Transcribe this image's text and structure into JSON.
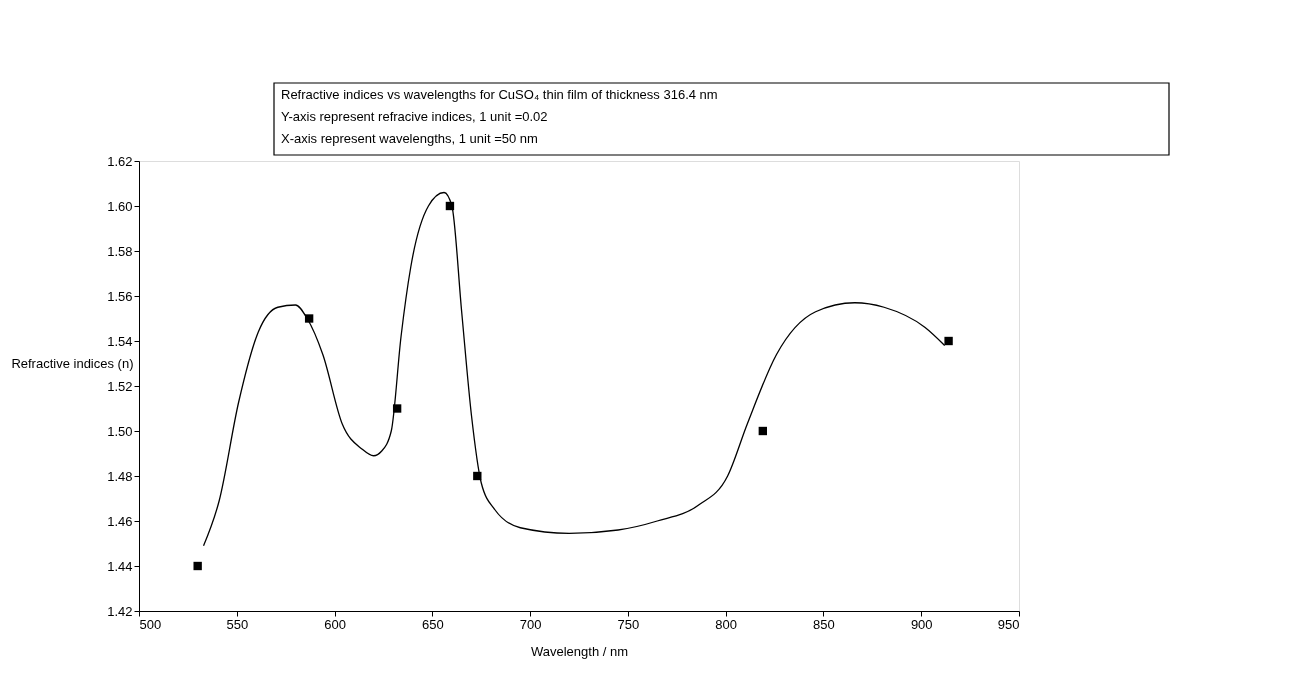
{
  "chart_data": {
    "type": "scatter",
    "xlabel": "Wavelength / nm",
    "ylabel": "Refractive indices (n)",
    "annotations": [
      "Refractive indices vs wavelengths for CuSO₄ thin film of thickness 316.4 nm",
      "Y-axis represent refracive indices, 1 unit =0.02",
      "X-axis represent wavelengths, 1 unit =50 nm"
    ],
    "xlim": [
      500,
      950
    ],
    "xticks": [
      500,
      550,
      600,
      650,
      700,
      750,
      800,
      850,
      900,
      950
    ],
    "ylim": [
      1.42,
      1.62
    ],
    "yticks": [
      {
        "value": 1.42,
        "label": "1.42"
      },
      {
        "value": 1.44,
        "label": "1.44"
      },
      {
        "value": 1.46,
        "label": "1.46"
      },
      {
        "value": 1.48,
        "label": "1.48"
      },
      {
        "value": 1.5,
        "label": "1.50"
      },
      {
        "value": 1.52,
        "label": "1.52"
      },
      {
        "value": 1.54,
        "label": "1.54"
      },
      {
        "value": 1.56,
        "label": "1.56"
      },
      {
        "value": 1.58,
        "label": "1.58"
      },
      {
        "value": 1.6,
        "label": "1.60"
      },
      {
        "value": 1.62,
        "label": "1.62"
      }
    ],
    "grid": false,
    "series": [
      {
        "marker": "square",
        "color": "#000000",
        "x": [
          530,
          587,
          632,
          659,
          673,
          819,
          914
        ],
        "values": [
          1.44,
          1.55,
          1.51,
          1.6,
          1.48,
          1.5,
          1.54
        ]
      },
      {
        "type": "line",
        "marker": "none",
        "line_style": "solid",
        "color": "#000000",
        "x": [
          533,
          541,
          551,
          561,
          571,
          580,
          586,
          594,
          604,
          614,
          620,
          624,
          629,
          634,
          639,
          648,
          656,
          660,
          665,
          670,
          675,
          682,
          695,
          720,
          745,
          765,
          786,
          801,
          811,
          826,
          846,
          866,
          881,
          902,
          912
        ],
        "values": [
          1.449,
          1.469,
          1.513,
          1.544,
          1.555,
          1.556,
          1.55,
          1.534,
          1.503,
          1.492,
          1.489,
          1.491,
          1.5,
          1.542,
          1.573,
          1.6,
          1.606,
          1.6,
          1.553,
          1.507,
          1.477,
          1.465,
          1.457,
          1.4545,
          1.456,
          1.46,
          1.467,
          1.48,
          1.503,
          1.534,
          1.553,
          1.557,
          1.555,
          1.546,
          1.538
        ]
      }
    ]
  }
}
